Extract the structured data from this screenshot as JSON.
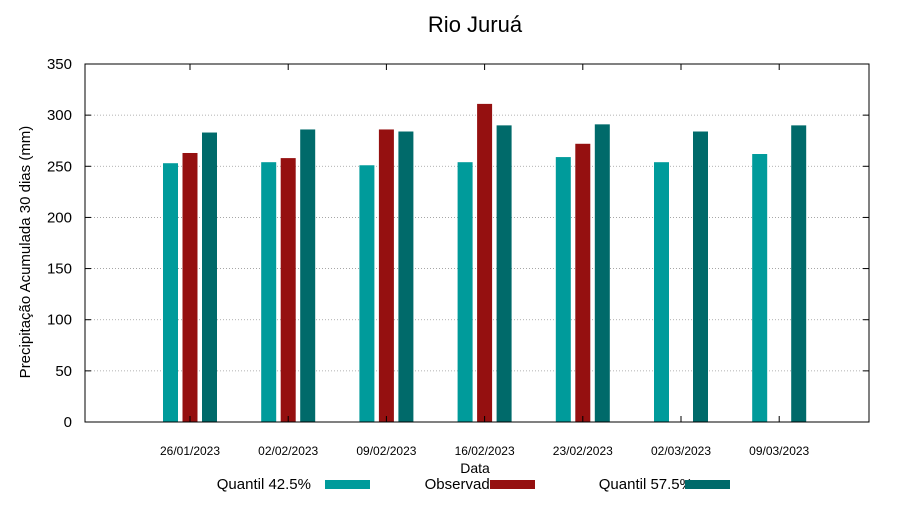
{
  "chart_data": {
    "type": "bar",
    "title": "Rio Juruá",
    "xlabel": "Data",
    "ylabel": "Precipitação Acumulada 30 dias (mm)",
    "ylim": [
      0,
      350
    ],
    "yticks": [
      0,
      50,
      100,
      150,
      200,
      250,
      300,
      350
    ],
    "grid": true,
    "legend_position": "bottom",
    "categories": [
      "26/01/2023",
      "02/02/2023",
      "09/02/2023",
      "16/02/2023",
      "23/02/2023",
      "02/03/2023",
      "09/03/2023"
    ],
    "series": [
      {
        "name": "Quantil 42.5%",
        "color": "#009b9b",
        "values": [
          253,
          254,
          251,
          254,
          259,
          254,
          262
        ]
      },
      {
        "name": "Observado",
        "color": "#951010",
        "values": [
          263,
          258,
          286,
          311,
          272,
          null,
          null
        ]
      },
      {
        "name": "Quantil 57.5%",
        "color": "#006a6a",
        "values": [
          283,
          286,
          284,
          290,
          291,
          284,
          290
        ]
      }
    ]
  }
}
